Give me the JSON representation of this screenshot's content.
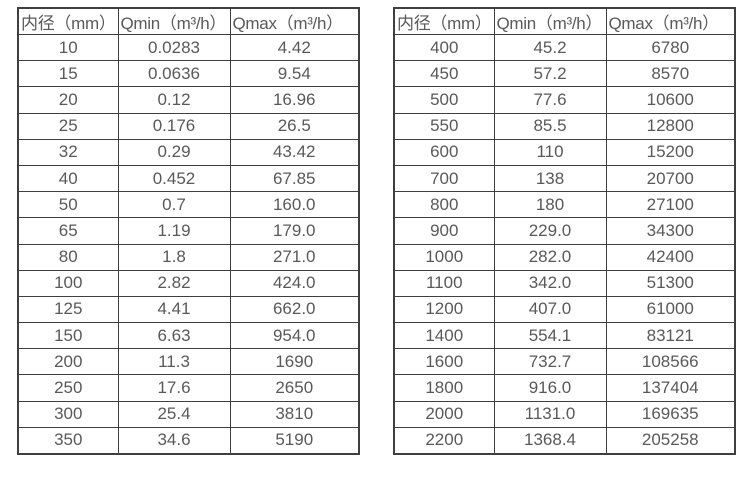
{
  "text_color": "#595959",
  "border_color": "#3f3f3f",
  "tables": [
    {
      "name": "flow-table-small-diameters",
      "columns": [
        "内径（mm）",
        "Qmin（m³/h）",
        "Qmax（m³/h）"
      ],
      "rows": [
        [
          "10",
          "0.0283",
          "4.42"
        ],
        [
          "15",
          "0.0636",
          "9.54"
        ],
        [
          "20",
          "0.12",
          "16.96"
        ],
        [
          "25",
          "0.176",
          "26.5"
        ],
        [
          "32",
          "0.29",
          "43.42"
        ],
        [
          "40",
          "0.452",
          "67.85"
        ],
        [
          "50",
          "0.7",
          "160.0"
        ],
        [
          "65",
          "1.19",
          "179.0"
        ],
        [
          "80",
          "1.8",
          "271.0"
        ],
        [
          "100",
          "2.82",
          "424.0"
        ],
        [
          "125",
          "4.41",
          "662.0"
        ],
        [
          "150",
          "6.63",
          "954.0"
        ],
        [
          "200",
          "11.3",
          "1690"
        ],
        [
          "250",
          "17.6",
          "2650"
        ],
        [
          "300",
          "25.4",
          "3810"
        ],
        [
          "350",
          "34.6",
          "5190"
        ]
      ]
    },
    {
      "name": "flow-table-large-diameters",
      "columns": [
        "内径（mm）",
        "Qmin（m³/h）",
        "Qmax（m³/h）"
      ],
      "rows": [
        [
          "400",
          "45.2",
          "6780"
        ],
        [
          "450",
          "57.2",
          "8570"
        ],
        [
          "500",
          "77.6",
          "10600"
        ],
        [
          "550",
          "85.5",
          "12800"
        ],
        [
          "600",
          "110",
          "15200"
        ],
        [
          "700",
          "138",
          "20700"
        ],
        [
          "800",
          "180",
          "27100"
        ],
        [
          "900",
          "229.0",
          "34300"
        ],
        [
          "1000",
          "282.0",
          "42400"
        ],
        [
          "1100",
          "342.0",
          "51300"
        ],
        [
          "1200",
          "407.0",
          "61000"
        ],
        [
          "1400",
          "554.1",
          "83121"
        ],
        [
          "1600",
          "732.7",
          "108566"
        ],
        [
          "1800",
          "916.0",
          "137404"
        ],
        [
          "2000",
          "1131.0",
          "169635"
        ],
        [
          "2200",
          "1368.4",
          "205258"
        ]
      ]
    }
  ]
}
